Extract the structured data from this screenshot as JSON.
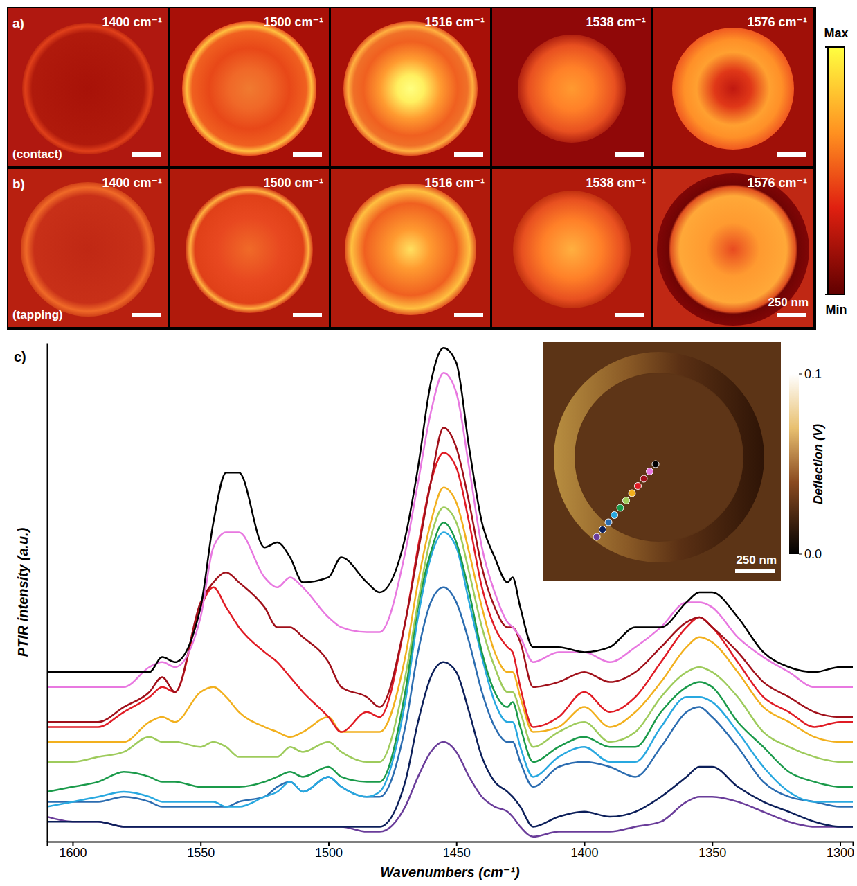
{
  "chart_data": [
    {
      "type": "image",
      "title": "a)",
      "subtitle": "(contact)",
      "categories": [
        "1400 cm⁻¹",
        "1500 cm⁻¹",
        "1516 cm⁻¹",
        "1538 cm⁻¹",
        "1576 cm⁻¹"
      ],
      "colorbar": {
        "range": [
          0,
          1
        ],
        "ticks": [
          {
            "value": 1,
            "label": "Max"
          },
          {
            "value": 0,
            "label": "Min"
          }
        ]
      }
    },
    {
      "type": "image",
      "title": "b)",
      "subtitle": "(tapping)",
      "categories": [
        "1400 cm⁻¹",
        "1500 cm⁻¹",
        "1516 cm⁻¹",
        "1538 cm⁻¹",
        "1576 cm⁻¹"
      ],
      "annotations": [
        "250 nm"
      ]
    },
    {
      "type": "line",
      "title": "c)",
      "xlabel": "Wavenumbers (cm⁻¹)",
      "ylabel": "PTIR intensity (a.u.)",
      "xlim": [
        1610,
        1295
      ],
      "xticks": [
        1600,
        1550,
        1500,
        1450,
        1400,
        1350,
        1300
      ],
      "ylim": [
        0,
        100
      ],
      "yticks": [],
      "tick_labels": "x",
      "grid": false,
      "x": [
        1610,
        1600,
        1590,
        1580,
        1570,
        1565,
        1560,
        1550,
        1545,
        1540,
        1535,
        1525,
        1520,
        1515,
        1510,
        1500,
        1495,
        1485,
        1480,
        1470,
        1465,
        1460,
        1455,
        1450,
        1445,
        1440,
        1435,
        1430,
        1428,
        1425,
        1420,
        1410,
        1400,
        1390,
        1380,
        1370,
        1360,
        1355,
        1350,
        1340,
        1330,
        1320,
        1310,
        1300,
        1295
      ],
      "series": [
        {
          "color": "#000000",
          "values": [
            34,
            34,
            34,
            34,
            34,
            37,
            36,
            47,
            64,
            74,
            74,
            59,
            60,
            57,
            52,
            53,
            57,
            52,
            50,
            61,
            75,
            92,
            99,
            96,
            79,
            64,
            57,
            52,
            53,
            47,
            39,
            39,
            38,
            39,
            43,
            43,
            48,
            50,
            50,
            45,
            38,
            35,
            34,
            35,
            35
          ]
        },
        {
          "color": "#e878e0",
          "values": [
            31,
            31,
            31,
            31,
            35,
            36,
            35,
            45,
            59,
            62,
            62,
            53,
            51,
            53,
            51,
            45,
            43,
            42,
            42,
            58,
            72,
            86,
            94,
            90,
            75,
            59,
            50,
            44,
            43,
            41,
            36,
            38,
            38,
            36,
            39,
            43,
            48,
            48,
            47,
            41,
            37,
            34,
            31,
            31,
            31
          ]
        },
        {
          "color": "#a0101a",
          "values": [
            24,
            24,
            24,
            27,
            30,
            33,
            30,
            48,
            52,
            54,
            52,
            47,
            43,
            43,
            41,
            36,
            31,
            29,
            27,
            44,
            58,
            72,
            83,
            79,
            68,
            55,
            47,
            43,
            43,
            40,
            31,
            32,
            34,
            32,
            34,
            39,
            44,
            45,
            43,
            38,
            32,
            29,
            26,
            25,
            25
          ]
        },
        {
          "color": "#e01b24",
          "values": [
            23,
            23,
            23,
            26,
            29,
            31,
            30,
            47,
            51,
            47,
            43,
            38,
            36,
            33,
            30,
            25,
            22,
            26,
            25,
            44,
            59,
            72,
            78,
            75,
            64,
            51,
            43,
            39,
            38,
            31,
            23,
            25,
            30,
            26,
            29,
            36,
            43,
            45,
            43,
            36,
            29,
            26,
            23,
            24,
            24
          ]
        },
        {
          "color": "#f2b01e",
          "values": [
            20,
            20,
            20,
            20,
            24,
            25,
            24,
            30,
            31,
            29,
            26,
            23,
            22,
            21,
            22,
            25,
            22,
            22,
            22,
            37,
            52,
            64,
            71,
            68,
            58,
            47,
            38,
            34,
            34,
            29,
            22,
            23,
            27,
            23,
            26,
            32,
            39,
            41,
            40,
            34,
            27,
            24,
            21,
            20,
            20
          ]
        },
        {
          "color": "#9ecb5c",
          "values": [
            16,
            16,
            17,
            18,
            21,
            20,
            20,
            19,
            20,
            19,
            17,
            17,
            17,
            19,
            18,
            20,
            18,
            16,
            16,
            33,
            48,
            61,
            67,
            64,
            54,
            43,
            35,
            30,
            30,
            26,
            19,
            22,
            24,
            20,
            22,
            29,
            34,
            35,
            34,
            29,
            22,
            19,
            17,
            16,
            16
          ]
        },
        {
          "color": "#1a9a4a",
          "values": [
            10,
            11,
            12,
            14,
            13,
            12,
            12,
            11,
            11,
            11,
            11,
            12,
            13,
            14,
            13,
            15,
            13,
            12,
            12,
            30,
            47,
            58,
            64,
            60,
            50,
            38,
            30,
            27,
            28,
            23,
            16,
            19,
            21,
            19,
            19,
            26,
            31,
            32,
            31,
            24,
            19,
            14,
            12,
            11,
            11
          ]
        },
        {
          "color": "#28a8e0",
          "values": [
            7,
            8,
            9,
            10,
            9,
            8,
            8,
            8,
            8,
            7,
            7,
            9,
            10,
            12,
            10,
            13,
            11,
            9,
            10,
            28,
            45,
            57,
            62,
            59,
            48,
            37,
            28,
            24,
            24,
            19,
            13,
            17,
            19,
            16,
            16,
            23,
            29,
            29,
            28,
            22,
            15,
            10,
            8,
            8,
            8
          ]
        },
        {
          "color": "#2b6cb0",
          "values": [
            8,
            8,
            8,
            9,
            8,
            7,
            7,
            7,
            7,
            7,
            8,
            9,
            11,
            12,
            10,
            13,
            11,
            9,
            9,
            23,
            38,
            48,
            51,
            48,
            40,
            30,
            23,
            20,
            20,
            16,
            11,
            15,
            16,
            15,
            13,
            19,
            26,
            27,
            25,
            19,
            12,
            9,
            8,
            7,
            7
          ]
        },
        {
          "color": "#0c1f5a",
          "values": [
            4,
            4,
            4,
            3,
            3,
            3,
            3,
            3,
            3,
            3,
            3,
            3,
            3,
            3,
            3,
            3,
            3,
            3,
            3,
            12,
            24,
            33,
            36,
            34,
            26,
            17,
            12,
            10,
            9,
            7,
            3,
            5,
            6,
            5,
            6,
            9,
            13,
            15,
            15,
            11,
            8,
            6,
            4,
            3,
            3
          ]
        },
        {
          "color": "#6a3d9a",
          "values": [
            5,
            4,
            4,
            3,
            3,
            3,
            3,
            3,
            3,
            3,
            3,
            3,
            3,
            3,
            3,
            3,
            3,
            2,
            2,
            7,
            13,
            18,
            20,
            18,
            13,
            9,
            7,
            6,
            5,
            3,
            1,
            2,
            2,
            2,
            3,
            4,
            8,
            9,
            9,
            8,
            6,
            4,
            3,
            3,
            3
          ]
        }
      ]
    },
    {
      "type": "image",
      "annotations": [
        "250 nm"
      ],
      "colorbar": {
        "label": "Deflection (V)",
        "range": [
          0,
          0.1
        ],
        "ticks": [
          0.1,
          {
            "value": 0,
            "label": "0.0"
          }
        ]
      }
    }
  ]
}
